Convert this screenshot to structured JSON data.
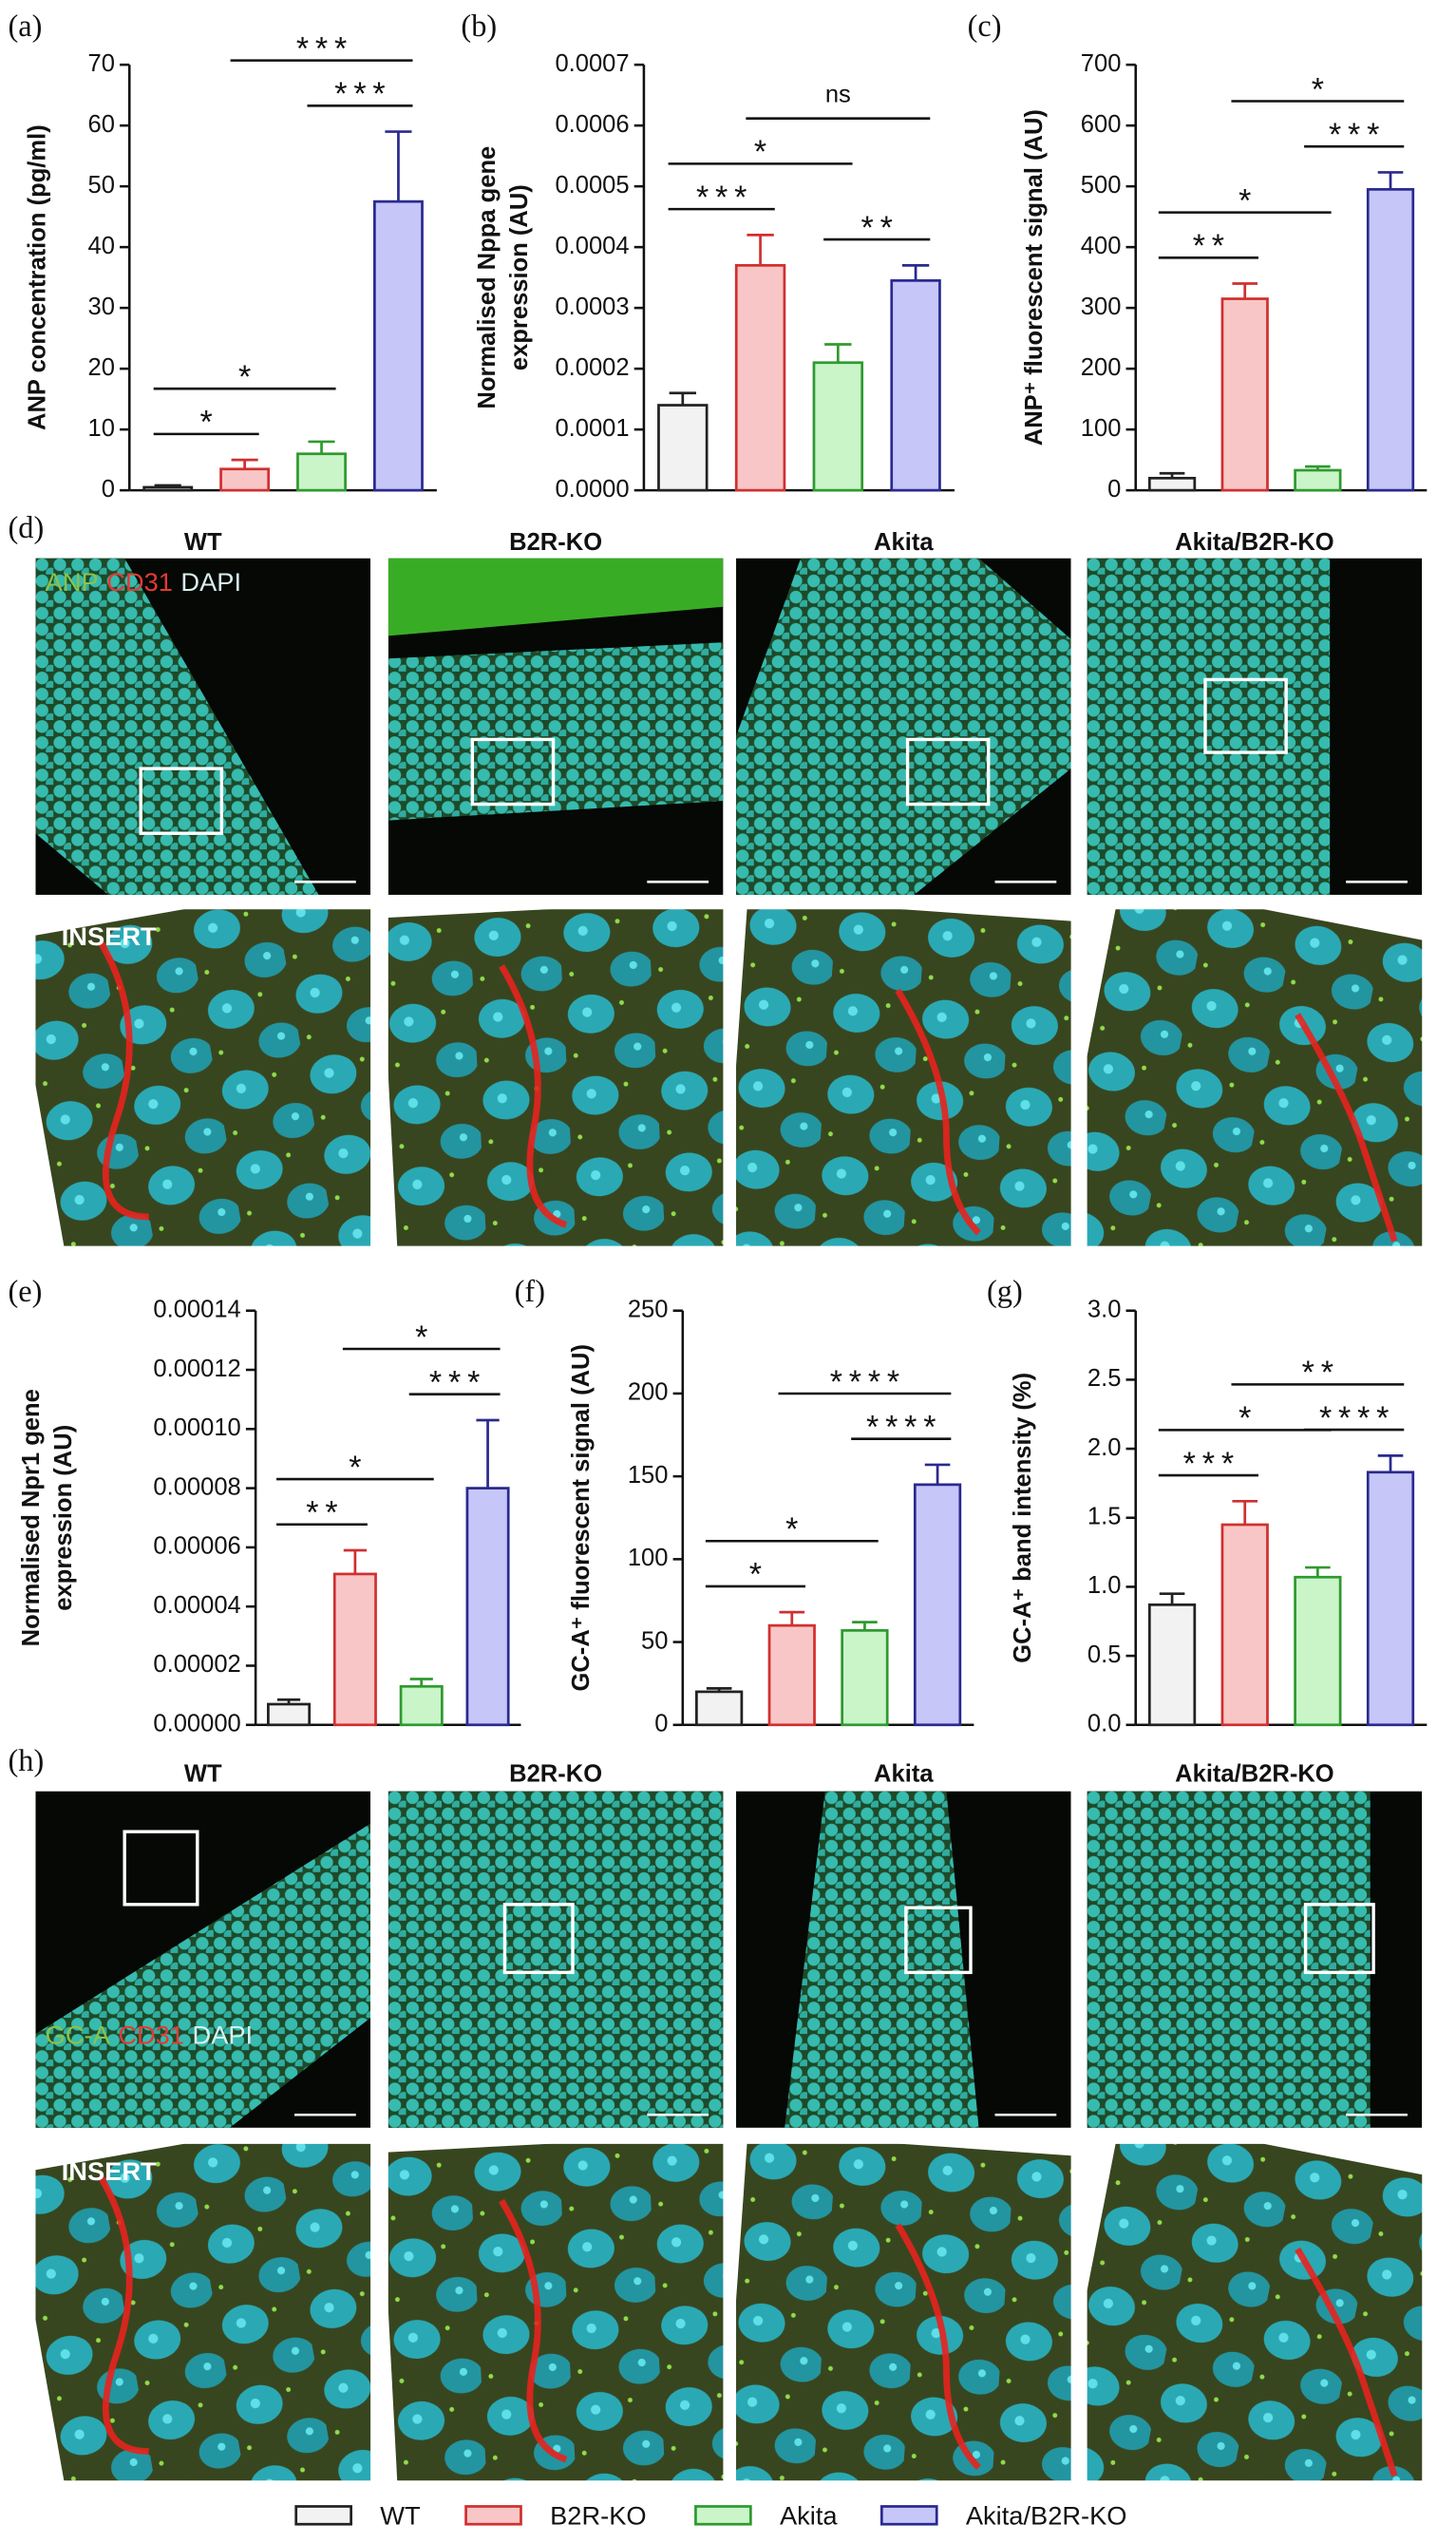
{
  "chart_data": [
    {
      "type": "bar",
      "label": "(a)",
      "ylabel": [
        "ANP concentration (pg/ml)"
      ],
      "ylim": [
        0,
        70
      ],
      "yticks": [
        0,
        10,
        20,
        30,
        40,
        50,
        60,
        70
      ],
      "values": [
        0.5,
        3.5,
        6,
        47.5
      ],
      "errors": [
        0.3,
        1.5,
        2,
        11.5
      ],
      "annotations": [
        {
          "text": "*",
          "from": 0,
          "to": 1
        },
        {
          "text": "*",
          "from": 0,
          "to": 2
        },
        {
          "text": "***",
          "from": 2,
          "to": 3
        },
        {
          "text": "***",
          "from": 1,
          "to": 3
        }
      ]
    },
    {
      "type": "bar",
      "label": "(b)",
      "ylabel": [
        "Normalised Nppa gene",
        "expression (AU)"
      ],
      "ylim": [
        0,
        0.0007
      ],
      "yticks": [
        {
          "value": 0,
          "label": "0.0000"
        },
        0.0001,
        0.0002,
        0.0003,
        0.0004,
        0.0005,
        0.0006,
        0.0007
      ],
      "values": [
        0.00014,
        0.00037,
        0.00021,
        0.000345
      ],
      "errors": [
        2e-05,
        5e-05,
        3e-05,
        2.5e-05
      ],
      "annotations": [
        {
          "text": "***",
          "from": 0,
          "to": 1
        },
        {
          "text": "*",
          "from": 0,
          "to": 2
        },
        {
          "text": "**",
          "from": 2,
          "to": 3
        },
        {
          "text": "ns",
          "from": 1,
          "to": 3
        }
      ]
    },
    {
      "type": "bar",
      "label": "(c)",
      "ylabel": [
        "ANP⁺ fluorescent signal (AU)"
      ],
      "ylim": [
        0,
        700
      ],
      "yticks": [
        0,
        100,
        200,
        300,
        400,
        500,
        600,
        700
      ],
      "values": [
        20,
        315,
        33,
        495
      ],
      "errors": [
        8,
        25,
        6,
        28
      ],
      "annotations": [
        {
          "text": "**",
          "from": 0,
          "to": 1
        },
        {
          "text": "*",
          "from": 0,
          "to": 2
        },
        {
          "text": "***",
          "from": 2,
          "to": 3
        },
        {
          "text": "*",
          "from": 1,
          "to": 3
        }
      ]
    },
    {
      "type": "bar",
      "label": "(e)",
      "ylabel": [
        "Normalised Npr1 gene",
        "expression (AU)"
      ],
      "ylim": [
        0,
        0.00014
      ],
      "yticks": [
        {
          "value": 0,
          "label": "0.00000"
        },
        2e-05,
        4e-05,
        6e-05,
        8e-05,
        {
          "value": 0.0001,
          "label": "0.00010"
        },
        0.00012,
        0.00014
      ],
      "values": [
        7e-06,
        5.1e-05,
        1.3e-05,
        8e-05
      ],
      "errors": [
        1.5e-06,
        8e-06,
        2.5e-06,
        2.3e-05
      ],
      "annotations": [
        {
          "text": "**",
          "from": 0,
          "to": 1
        },
        {
          "text": "*",
          "from": 0,
          "to": 2
        },
        {
          "text": "***",
          "from": 2,
          "to": 3
        },
        {
          "text": "*",
          "from": 1,
          "to": 3
        }
      ]
    },
    {
      "type": "bar",
      "label": "(f)",
      "ylabel": [
        "GC-A⁺ fluorescent signal (AU)"
      ],
      "ylim": [
        0,
        250
      ],
      "yticks": [
        0,
        50,
        100,
        150,
        200,
        250
      ],
      "values": [
        20,
        60,
        57,
        145
      ],
      "errors": [
        2,
        8,
        5,
        12
      ],
      "annotations": [
        {
          "text": "*",
          "from": 0,
          "to": 1
        },
        {
          "text": "*",
          "from": 0,
          "to": 2
        },
        {
          "text": "****",
          "from": 2,
          "to": 3
        },
        {
          "text": "****",
          "from": 1,
          "to": 3
        }
      ]
    },
    {
      "type": "bar",
      "label": "(g)",
      "ylabel": [
        "GC-A⁺ band intensity (%)"
      ],
      "ylim": [
        0,
        3
      ],
      "yticks": [
        {
          "value": 0,
          "label": "0.0"
        },
        0.5,
        {
          "value": 1,
          "label": "1.0"
        },
        1.5,
        {
          "value": 2,
          "label": "2.0"
        },
        2.5,
        {
          "value": 3,
          "label": "3.0"
        }
      ],
      "values": [
        0.87,
        1.45,
        1.07,
        1.83
      ],
      "errors": [
        0.08,
        0.17,
        0.07,
        0.12
      ],
      "annotations": [
        {
          "text": "***",
          "from": 0,
          "to": 1
        },
        {
          "text": "*",
          "from": 0,
          "to": 2
        },
        {
          "text": "****",
          "from": 2,
          "to": 3
        },
        {
          "text": "**",
          "from": 1,
          "to": 3
        }
      ]
    }
  ],
  "legend": [
    {
      "name": "WT",
      "color": "#f2f2f2",
      "edge": "#222222"
    },
    {
      "name": "B2R-KO",
      "color": "#f8c6c6",
      "edge": "#d03030"
    },
    {
      "name": "Akita",
      "color": "#c9f5c9",
      "edge": "#2f9a2f"
    },
    {
      "name": "Akita/B2R-KO",
      "color": "#c6c6f8",
      "edge": "#2a2a8f"
    }
  ],
  "micrographs": [
    {
      "label": "(d)",
      "columns": [
        "WT",
        "B2R-KO",
        "Akita",
        "Akita/B2R-KO"
      ],
      "stain": [
        {
          "text": "ANP",
          "color": "#8bc34a"
        },
        {
          "text": "CD31",
          "color": "#e53935"
        },
        {
          "text": "DAPI",
          "color": "#d8f0f0"
        }
      ],
      "insert": "INSERT"
    },
    {
      "label": "(h)",
      "columns": [
        "WT",
        "B2R-KO",
        "Akita",
        "Akita/B2R-KO"
      ],
      "stain": [
        {
          "text": "GC-A",
          "color": "#8bc34a"
        },
        {
          "text": "CD31",
          "color": "#e53935"
        },
        {
          "text": "DAPI",
          "color": "#d8f0f0"
        }
      ],
      "insert": "INSERT"
    }
  ]
}
